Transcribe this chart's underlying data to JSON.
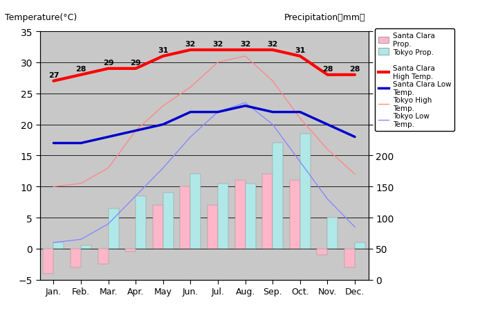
{
  "months": [
    "Jan.",
    "Feb.",
    "Mar.",
    "Apr.",
    "May",
    "Jun.",
    "Jul.",
    "Aug.",
    "Sep.",
    "Oct.",
    "Nov.",
    "Dec."
  ],
  "santa_clara_high": [
    27,
    28,
    29,
    29,
    31,
    32,
    32,
    32,
    32,
    31,
    28,
    28
  ],
  "santa_clara_low": [
    17,
    17,
    18,
    19,
    20,
    22,
    22,
    23,
    22,
    22,
    20,
    18
  ],
  "tokyo_high": [
    10,
    10.5,
    13,
    19,
    23,
    26,
    30,
    31,
    27,
    21,
    16,
    12
  ],
  "tokyo_low": [
    1,
    1.5,
    4,
    8.5,
    13,
    18,
    22,
    23.5,
    20,
    14,
    8,
    3.5
  ],
  "santa_clara_precip_temp": [
    -4,
    -3,
    -2.5,
    -0.5,
    7,
    10,
    7,
    11,
    12,
    11,
    -1,
    -3
  ],
  "tokyo_precip_temp": [
    1,
    0.5,
    6.5,
    8.5,
    9,
    12,
    10.5,
    10.5,
    17,
    18.5,
    5,
    1
  ],
  "santa_clara_high_labels": [
    27,
    28,
    29,
    29,
    31,
    32,
    32,
    32,
    32,
    31,
    28,
    28
  ],
  "background_color": "#c8c8c8",
  "title_left": "Temperature(°C)",
  "title_right": "Precipitation（mm）",
  "ylim_left": [
    -5,
    35
  ],
  "ylim_right": [
    0,
    400
  ],
  "yticks_left": [
    -5,
    0,
    5,
    10,
    15,
    20,
    25,
    30,
    35
  ],
  "yticks_right": [
    0,
    50,
    100,
    150,
    200,
    250,
    300,
    350,
    400
  ],
  "santa_clara_high_color": "#ff0000",
  "santa_clara_low_color": "#0000cc",
  "tokyo_high_color": "#ff8888",
  "tokyo_low_color": "#8888ff",
  "santa_clara_precip_color": "#ffb6c8",
  "tokyo_precip_color": "#b0e8e8",
  "santa_clara_high_lw": 3,
  "santa_clara_low_lw": 2.5,
  "tokyo_high_lw": 1,
  "tokyo_low_lw": 1,
  "grid_color": "#000000",
  "grid_lw": 0.6
}
